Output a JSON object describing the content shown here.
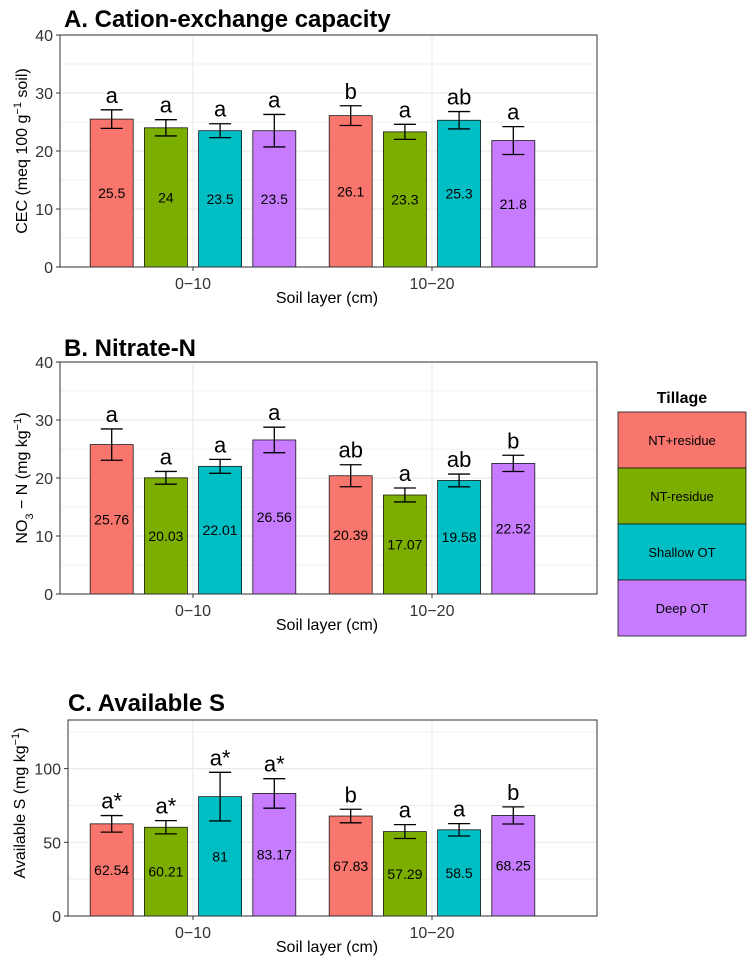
{
  "colors": {
    "NT+residue": "#f8766d",
    "NT-residue": "#7cae00",
    "Shallow OT": "#00bfc4",
    "Deep OT": "#c77cff",
    "grid": "#ebebeb",
    "border": "#333333"
  },
  "legend": {
    "title": "Tillage",
    "entries": [
      "NT+residue",
      "NT-residue",
      "Shallow OT",
      "Deep OT"
    ]
  },
  "chart_data": [
    {
      "type": "bar",
      "title": "A. Cation-exchange capacity",
      "xlabel": "Soil layer (cm)",
      "ylabel": "CEC (meq 100 g⁻¹ soil)",
      "ylim": [
        0,
        40
      ],
      "yticks": [
        0,
        10,
        20,
        30,
        40
      ],
      "categories": [
        "0−10",
        "10−20"
      ],
      "series": [
        {
          "name": "NT+residue",
          "values": [
            25.5,
            26.1
          ],
          "labels": [
            "25.5",
            "26.1"
          ],
          "err": [
            1.6,
            1.7
          ],
          "sig": [
            "a",
            "b"
          ]
        },
        {
          "name": "NT-residue",
          "values": [
            24,
            23.3
          ],
          "labels": [
            "24",
            "23.3"
          ],
          "err": [
            1.4,
            1.3
          ],
          "sig": [
            "a",
            "a"
          ]
        },
        {
          "name": "Shallow OT",
          "values": [
            23.5,
            25.3
          ],
          "labels": [
            "23.5",
            "25.3"
          ],
          "err": [
            1.2,
            1.5
          ],
          "sig": [
            "a",
            "ab"
          ]
        },
        {
          "name": "Deep OT",
          "values": [
            23.5,
            21.8
          ],
          "labels": [
            "23.5",
            "21.8"
          ],
          "err": [
            2.8,
            2.4
          ],
          "sig": [
            "a",
            "a"
          ]
        }
      ]
    },
    {
      "type": "bar",
      "title": "B. Nitrate-N",
      "xlabel": "Soil layer (cm)",
      "ylabel": "NO₃ − N (mg kg⁻¹)",
      "ylim": [
        0,
        40
      ],
      "yticks": [
        0,
        10,
        20,
        30,
        40
      ],
      "categories": [
        "0−10",
        "10−20"
      ],
      "series": [
        {
          "name": "NT+residue",
          "values": [
            25.76,
            20.39
          ],
          "labels": [
            "25.76",
            "20.39"
          ],
          "err": [
            2.7,
            1.9
          ],
          "sig": [
            "a",
            "ab"
          ]
        },
        {
          "name": "NT-residue",
          "values": [
            20.03,
            17.07
          ],
          "labels": [
            "20.03",
            "17.07"
          ],
          "err": [
            1.1,
            1.2
          ],
          "sig": [
            "a",
            "a"
          ]
        },
        {
          "name": "Shallow OT",
          "values": [
            22.01,
            19.58
          ],
          "labels": [
            "22.01",
            "19.58"
          ],
          "err": [
            1.2,
            1.1
          ],
          "sig": [
            "a",
            "ab"
          ]
        },
        {
          "name": "Deep OT",
          "values": [
            26.56,
            22.52
          ],
          "labels": [
            "26.56",
            "22.52"
          ],
          "err": [
            2.2,
            1.4
          ],
          "sig": [
            "a",
            "b"
          ]
        }
      ]
    },
    {
      "type": "bar",
      "title": "C. Available S",
      "xlabel": "Soil layer (cm)",
      "ylabel": "Available S (mg kg⁻¹)",
      "ylim": [
        0,
        133
      ],
      "yticks": [
        0,
        50,
        100
      ],
      "categories": [
        "0−10",
        "10−20"
      ],
      "series": [
        {
          "name": "NT+residue",
          "values": [
            62.54,
            67.83
          ],
          "labels": [
            "62.54",
            "67.83"
          ],
          "err": [
            5.6,
            4.6
          ],
          "sig": [
            "a*",
            "b"
          ]
        },
        {
          "name": "NT-residue",
          "values": [
            60.21,
            57.29
          ],
          "labels": [
            "60.21",
            "57.29"
          ],
          "err": [
            4.5,
            4.7
          ],
          "sig": [
            "a*",
            "a"
          ]
        },
        {
          "name": "Shallow OT",
          "values": [
            81,
            58.5
          ],
          "labels": [
            "81",
            "58.5"
          ],
          "err": [
            16.5,
            4.2
          ],
          "sig": [
            "a*",
            "a"
          ]
        },
        {
          "name": "Deep OT",
          "values": [
            83.17,
            68.25
          ],
          "labels": [
            "83.17",
            "68.25"
          ],
          "err": [
            10,
            5.8
          ],
          "sig": [
            "a*",
            "b"
          ]
        }
      ]
    }
  ]
}
